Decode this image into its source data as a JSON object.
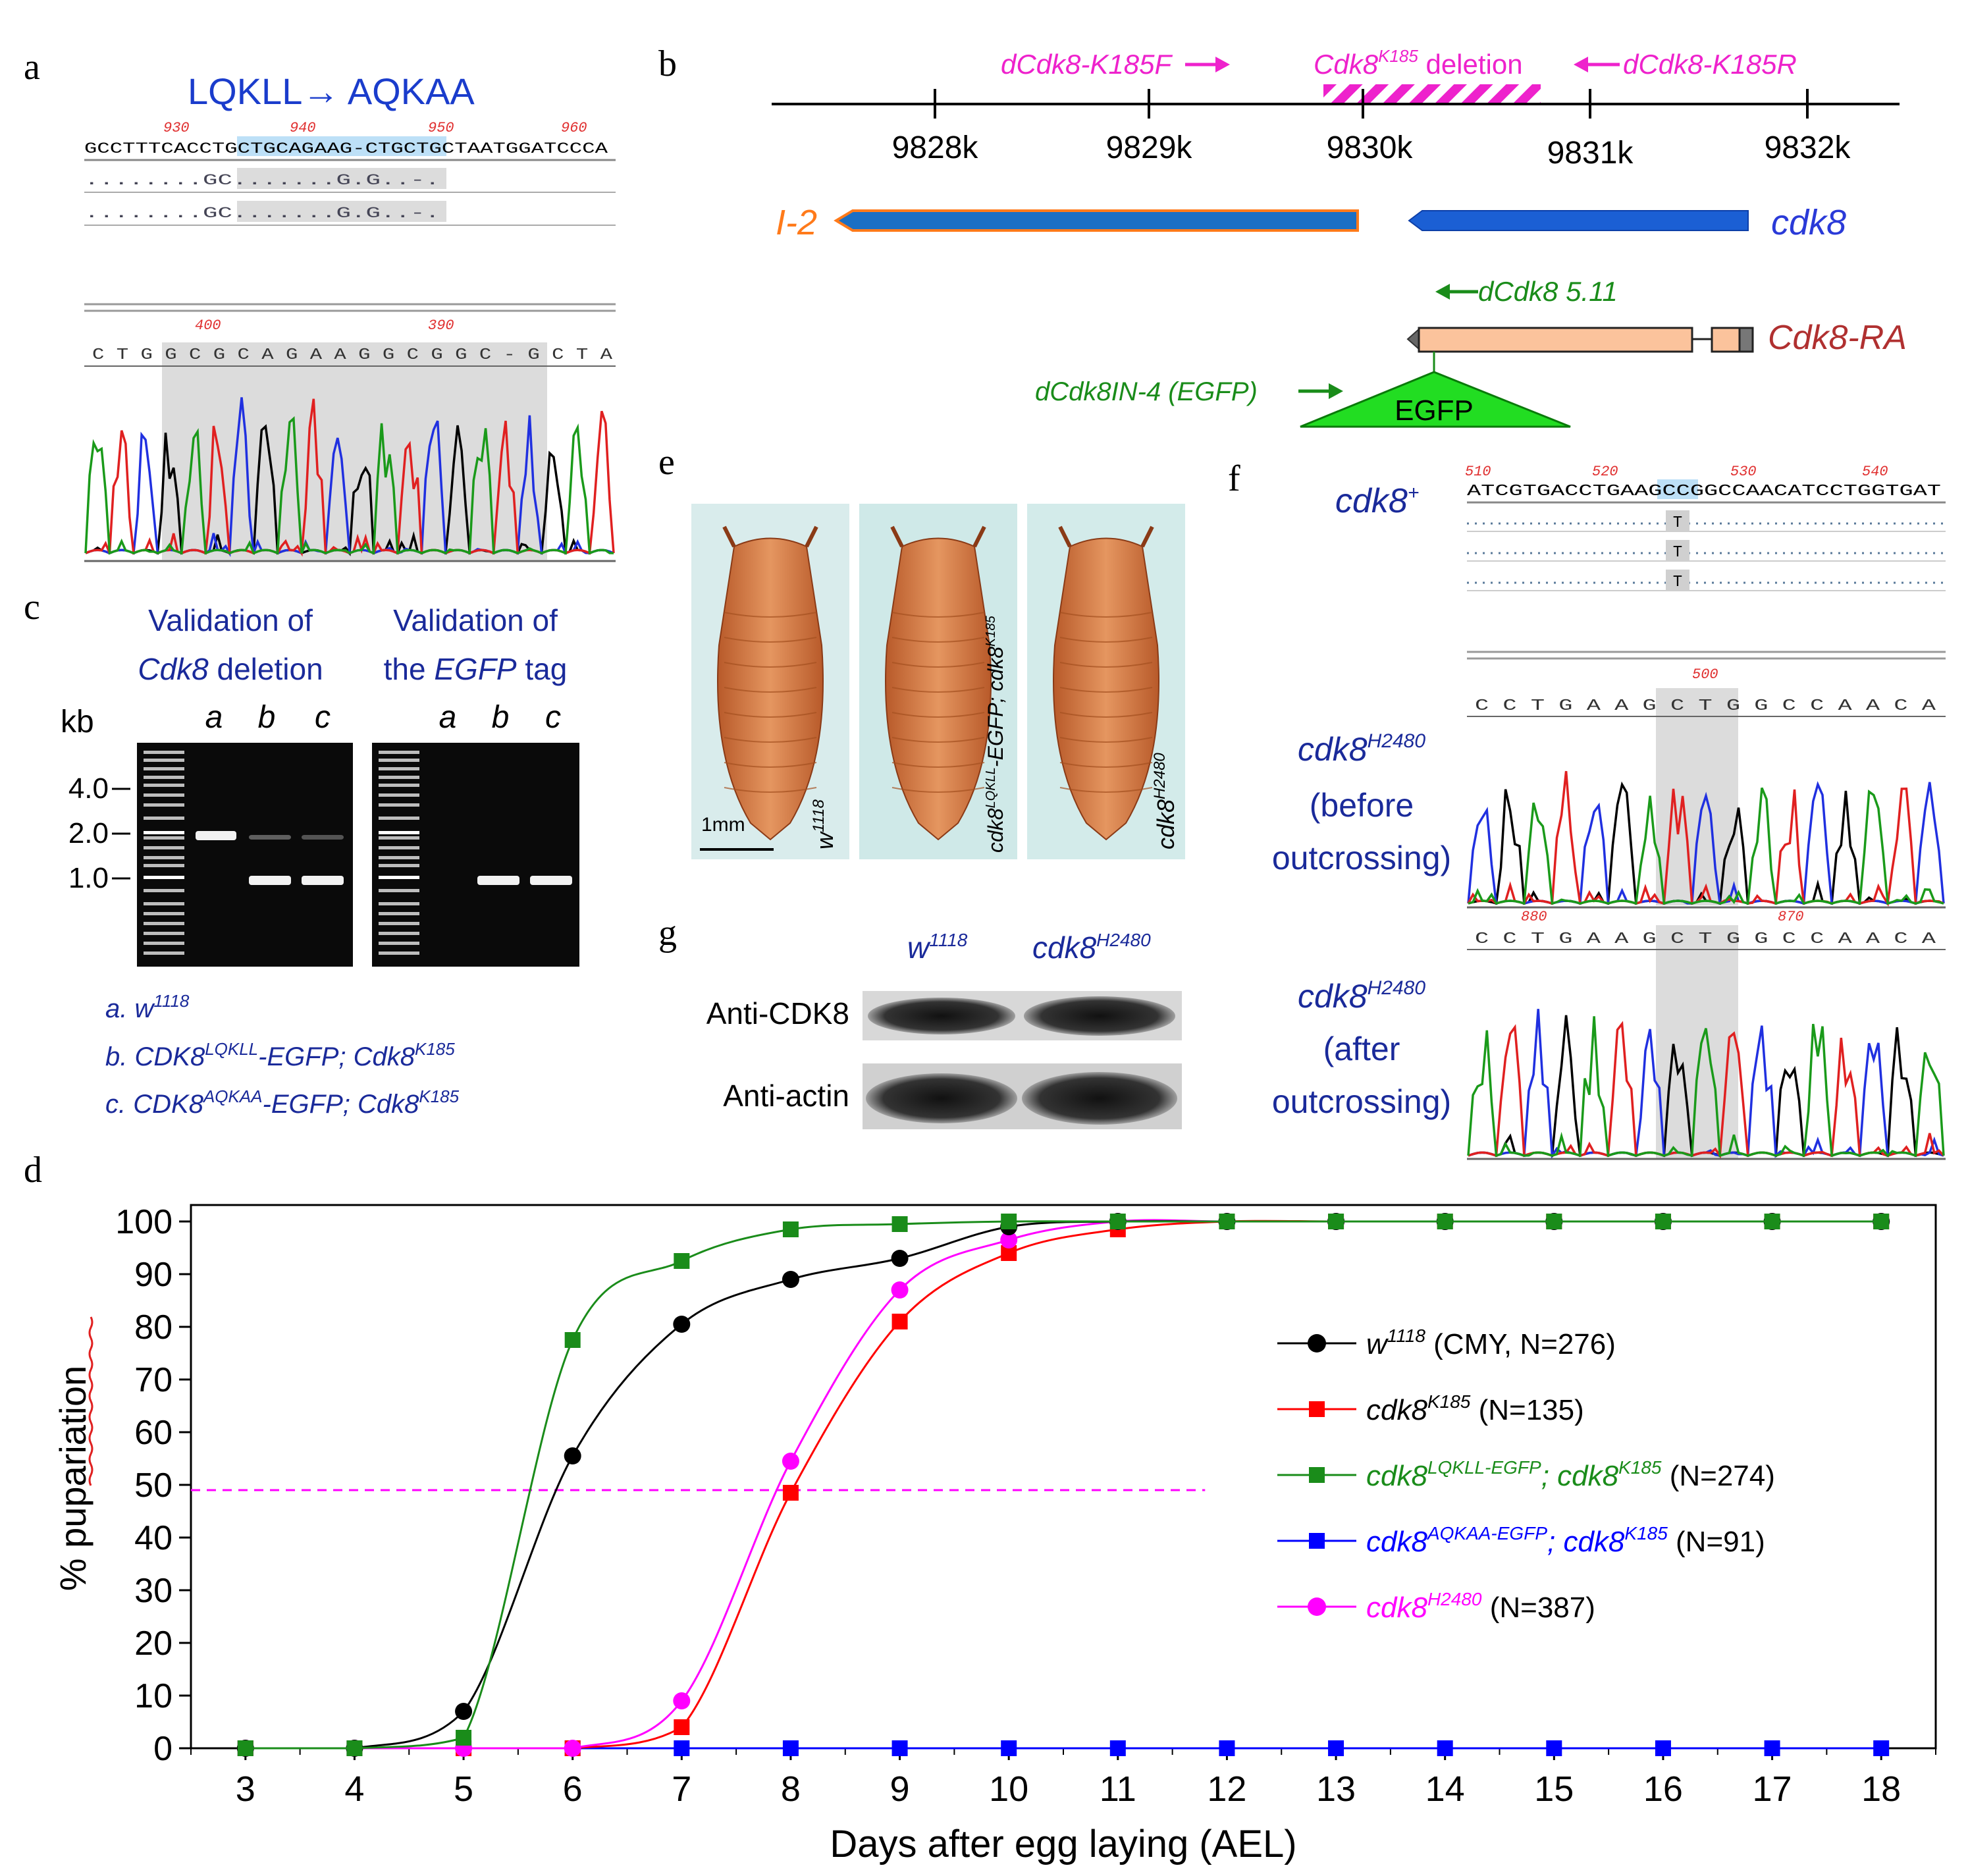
{
  "panel_letters": {
    "a": "a",
    "b": "b",
    "c": "c",
    "d": "d",
    "e": "e",
    "f": "f",
    "g": "g"
  },
  "panel_a": {
    "title": "LQKLL→ AQKAA",
    "ruler": [
      "930",
      "940",
      "950",
      "960"
    ],
    "ref_seq": "GCCTTTCACCTGCTGCAGAAG-CTGCTGCTAATGGATCCCA",
    "mut_row": "........GC.......G.G..-.",
    "trace_ruler": [
      "400",
      "390"
    ],
    "trace_seq": "C T G G C G C A G A A G G C G G C - G C T A"
  },
  "panel_b": {
    "primer_f": "dCdk8-K185F",
    "deletion_sup": "K185",
    "deletion_pre": "Cdk8",
    "deletion_post": " deletion",
    "primer_r": "dCdk8-K185R",
    "ticks": [
      "9828k",
      "9829k",
      "9830k",
      "9831k",
      "9832k"
    ],
    "gene_left": "I-2",
    "gene_right": "cdk8",
    "primer_511": "dCdk8 5.11",
    "transcript": "Cdk8-RA",
    "primer_in4": "dCdk8IN-4 (EGFP)",
    "egfp": "EGFP"
  },
  "panel_c": {
    "title_left_1": "Validation of",
    "title_left_2": "deletion",
    "title_left_gene": "Cdk8",
    "title_right_1": "Validation of",
    "title_right_2": "the",
    "title_right_gene": "EGFP",
    "title_right_3": "tag",
    "unit": "kb",
    "lanes": [
      "a",
      "b",
      "c"
    ],
    "marker_labels": [
      "4.0",
      "2.0",
      "1.0"
    ],
    "legend": [
      {
        "prefix": "a. ",
        "gene": "w",
        "sup": "1118",
        "rest": "",
        "sup2": ""
      },
      {
        "prefix": "b. ",
        "gene": "CDK8",
        "sup": "LQKLL",
        "rest": "-EGFP; Cdk8",
        "sup2": "K185"
      },
      {
        "prefix": "c. ",
        "gene": "CDK8",
        "sup": "AQKAA",
        "rest": "-EGFP; Cdk8",
        "sup2": "K185"
      }
    ]
  },
  "panel_e": {
    "scale": "1mm",
    "labels": [
      {
        "base": "w",
        "sup": "1118"
      },
      {
        "base": "cdk8",
        "sup": "LQKLL",
        "rest": "-EGFP; cdk8",
        "sup2": "K185"
      },
      {
        "base": "cdk8",
        "sup": "H2480"
      }
    ]
  },
  "panel_f": {
    "row1": {
      "base": "cdk8",
      "sup": "+"
    },
    "ruler": [
      "510",
      "520",
      "530",
      "540"
    ],
    "ref_seq": "ATCGTGACCTGAAGCCGGCCAACATCCTGGTGAT",
    "mut": "T",
    "row2": {
      "base": "cdk8",
      "sup": "H2480",
      "line2": "(before",
      "line3": "outcrossing)"
    },
    "row2_ruler": "500",
    "row2_seq": "C C T G A A G C T G G C C A A C A",
    "row3": {
      "base": "cdk8",
      "sup": "H2480",
      "line2": "(after",
      "line3": "outcrossing)"
    },
    "row3_ruler": [
      "880",
      "870"
    ],
    "row3_seq": "C C T G A A G C T G G C C A A C A"
  },
  "panel_g": {
    "col1": {
      "base": "w",
      "sup": "1118"
    },
    "col2": {
      "base": "cdk8",
      "sup": "H2480"
    },
    "row1": "Anti-CDK8",
    "row2": "Anti-actin"
  },
  "chart_data": {
    "type": "line",
    "xlabel": "Days after egg laying (AEL)",
    "ylabel": "% pupariation",
    "xlim": [
      2.5,
      18.5
    ],
    "ylim": [
      0,
      100
    ],
    "x": [
      3,
      4,
      5,
      6,
      7,
      8,
      9,
      10,
      11,
      12,
      13,
      14,
      15,
      16,
      17,
      18
    ],
    "yticks": [
      0,
      10,
      20,
      30,
      40,
      50,
      60,
      70,
      80,
      90,
      100
    ],
    "reference_line_y": 49,
    "legend_position": "right",
    "series": [
      {
        "name": "w¹¹¹⁸ (CMY, N=276)",
        "color": "#000000",
        "marker": "circle",
        "values": [
          0,
          0,
          7,
          55.5,
          80.5,
          89,
          93,
          99,
          100,
          100,
          100,
          100,
          100,
          100,
          100,
          100
        ]
      },
      {
        "name": "cdk8ᴷ¹⁸⁵ (N=135)",
        "color": "#ff0000",
        "marker": "square",
        "values": [
          0,
          0,
          0,
          0,
          4,
          48.5,
          81,
          94,
          98.5,
          100,
          100,
          100,
          100,
          100,
          100,
          100
        ]
      },
      {
        "name": "cdk8ᴸᵠᴷᴸᴸ⁻ᴱᴳᶠᴾ; cdk8ᴷ¹⁸⁵ (N=274)",
        "color": "#1a8c1a",
        "marker": "square",
        "values": [
          0,
          0,
          2,
          77.5,
          92.5,
          98.5,
          99.5,
          100,
          100,
          100,
          100,
          100,
          100,
          100,
          100,
          100
        ]
      },
      {
        "name": "cdk8ᴬᵠᴷᴬᴬ⁻ᴱᴳᶠᴾ; cdk8ᴷ¹⁸⁵ (N=91)",
        "color": "#0000ff",
        "marker": "square",
        "values": [
          0,
          0,
          0,
          0,
          0,
          0,
          0,
          0,
          0,
          0,
          0,
          0,
          0,
          0,
          0,
          0
        ]
      },
      {
        "name": "cdk8ᴴ²⁴⁸⁰ (N=387)",
        "color": "#ff00ff",
        "marker": "circle",
        "values": [
          0,
          0,
          0,
          0,
          9,
          54.5,
          87,
          96.5,
          100,
          100,
          100,
          100,
          100,
          100,
          100,
          100
        ]
      }
    ],
    "legend_entries": [
      {
        "base": "w",
        "sup": "1118",
        "rest": " (CMY, N=276)",
        "color": "#000000",
        "text_color": "#000000"
      },
      {
        "base": "cdk8",
        "sup": "K185",
        "rest": " (N=135)",
        "color": "#ff0000",
        "text_color": "#000000"
      },
      {
        "base": "cdk8",
        "sup": "LQKLL-EGFP",
        "mid": "; cdk8",
        "sup2": "K185",
        "rest": " (N=274)",
        "color": "#1a8c1a",
        "text_color": "#1a8c1a"
      },
      {
        "base": "cdk8",
        "sup": "AQKAA-EGFP",
        "mid": "; cdk8",
        "sup2": "K185",
        "rest": " (N=91)",
        "color": "#0000ff",
        "text_color": "#0000ff"
      },
      {
        "base": "cdk8",
        "sup": "H2480",
        "rest": " (N=387)",
        "color": "#ff00ff",
        "text_color": "#ff00ff"
      }
    ]
  }
}
